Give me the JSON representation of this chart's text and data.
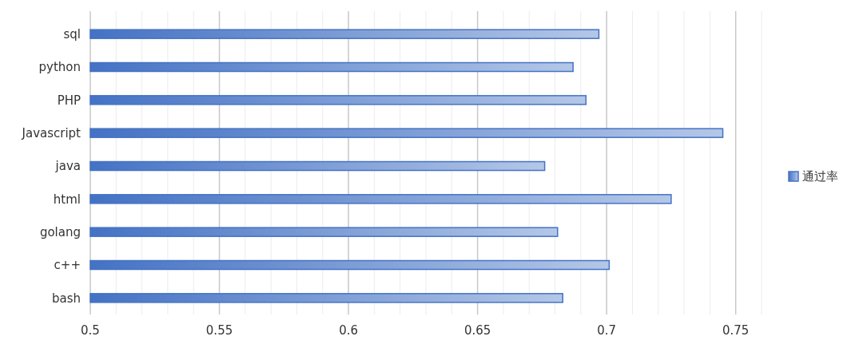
{
  "chart_data": {
    "type": "bar",
    "orientation": "horizontal",
    "categories": [
      "sql",
      "python",
      "PHP",
      "Javascript",
      "java",
      "html",
      "golang",
      "c++",
      "bash"
    ],
    "series": [
      {
        "name": "通过率",
        "color": "#4472c4",
        "values": [
          0.697,
          0.687,
          0.692,
          0.745,
          0.676,
          0.725,
          0.681,
          0.701,
          0.683
        ]
      }
    ],
    "xlim": [
      0.5,
      0.76
    ],
    "xticks": [
      0.5,
      {
        "value": 0.51,
        "label": null
      },
      {
        "value": 0.52,
        "label": null
      },
      {
        "value": 0.53,
        "label": null
      },
      {
        "value": 0.54,
        "label": null
      },
      0.55,
      {
        "value": 0.56,
        "label": null
      },
      {
        "value": 0.57,
        "label": null
      },
      {
        "value": 0.58,
        "label": null
      },
      {
        "value": 0.59,
        "label": null
      },
      0.6,
      {
        "value": 0.61,
        "label": null
      },
      {
        "value": 0.62,
        "label": null
      },
      {
        "value": 0.63,
        "label": null
      },
      {
        "value": 0.64,
        "label": null
      },
      0.65,
      {
        "value": 0.66,
        "label": null
      },
      {
        "value": 0.67,
        "label": null
      },
      {
        "value": 0.68,
        "label": null
      },
      {
        "value": 0.69,
        "label": null
      },
      0.7,
      {
        "value": 0.71,
        "label": null
      },
      {
        "value": 0.72,
        "label": null
      },
      {
        "value": 0.73,
        "label": null
      },
      {
        "value": 0.74,
        "label": null
      },
      0.75,
      {
        "value": 0.76,
        "label": null
      }
    ],
    "grid": "x",
    "legend": "right"
  }
}
